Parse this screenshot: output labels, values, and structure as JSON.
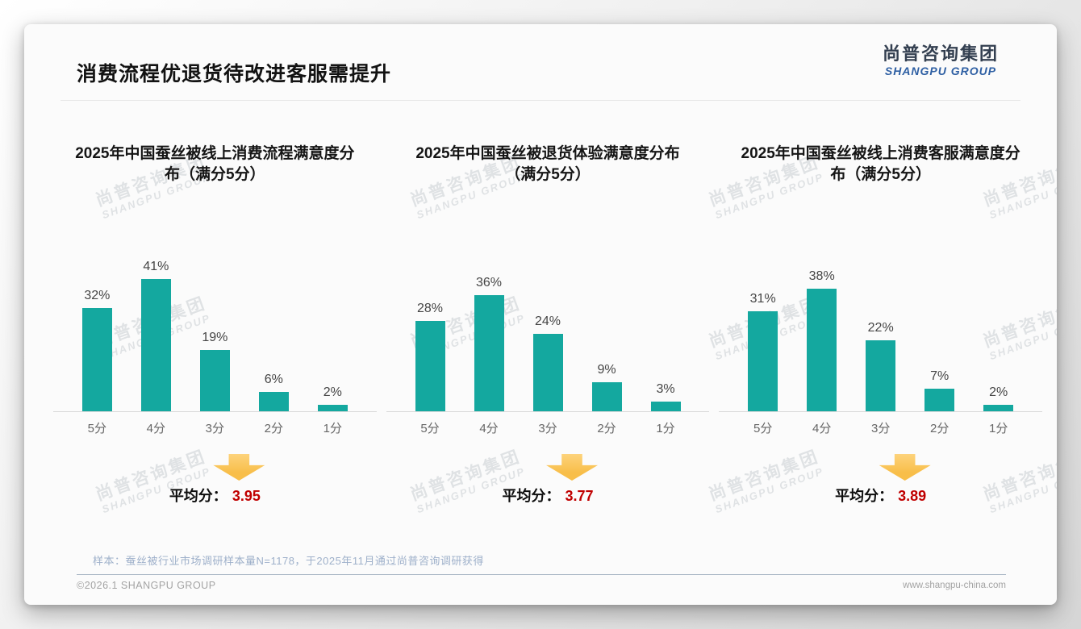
{
  "page": {
    "header": {
      "title": "消费流程优退货待改进客服需提升"
    },
    "logo": {
      "cn": "尚普咨询集团",
      "en": "SHANGPU GROUP"
    },
    "watermark": {
      "cn": "尚普咨询集团",
      "en": "SHANGPU GROUP"
    },
    "footnote": "样本：蚕丝被行业市场调研样本量N=1178，于2025年11月通过尚普咨询调研获得",
    "footer": {
      "copyright": "©2026.1 SHANGPU GROUP",
      "website": "www.shangpu-china.com"
    }
  },
  "colors": {
    "bar": "#14A89F",
    "average_value": "#C00000",
    "arrow": "#F8BE49",
    "arrow_top": "#FDD37C",
    "logo_cn": "#333F50",
    "logo_en": "#2E5FA3"
  },
  "chart_data": [
    {
      "type": "bar",
      "title": "2025年中国蚕丝被线上消费流程满意度分布（满分5分）",
      "categories": [
        "5分",
        "4分",
        "3分",
        "2分",
        "1分"
      ],
      "values": [
        32,
        41,
        19,
        6,
        2
      ],
      "value_labels": [
        "32%",
        "41%",
        "19%",
        "6%",
        "2%"
      ],
      "xlabel": "",
      "ylabel": "",
      "ylim": [
        0,
        45
      ],
      "grid": false,
      "legend": "none",
      "average_label": "平均分：",
      "average_value": "3.95"
    },
    {
      "type": "bar",
      "title": "2025年中国蚕丝被退货体验满意度分布（满分5分）",
      "categories": [
        "5分",
        "4分",
        "3分",
        "2分",
        "1分"
      ],
      "values": [
        28,
        36,
        24,
        9,
        3
      ],
      "value_labels": [
        "28%",
        "36%",
        "24%",
        "9%",
        "3%"
      ],
      "xlabel": "",
      "ylabel": "",
      "ylim": [
        0,
        45
      ],
      "grid": false,
      "legend": "none",
      "average_label": "平均分：",
      "average_value": "3.77"
    },
    {
      "type": "bar",
      "title": "2025年中国蚕丝被线上消费客服满意度分布（满分5分）",
      "categories": [
        "5分",
        "4分",
        "3分",
        "2分",
        "1分"
      ],
      "values": [
        31,
        38,
        22,
        7,
        2
      ],
      "value_labels": [
        "31%",
        "38%",
        "22%",
        "7%",
        "2%"
      ],
      "xlabel": "",
      "ylabel": "",
      "ylim": [
        0,
        45
      ],
      "grid": false,
      "legend": "none",
      "average_label": "平均分：",
      "average_value": "3.89"
    }
  ]
}
